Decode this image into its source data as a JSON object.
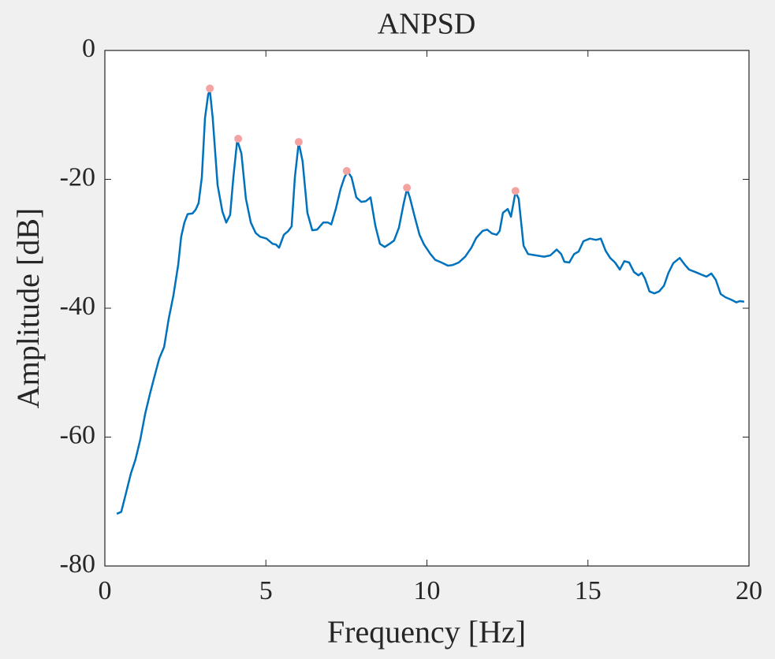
{
  "chart_data": {
    "type": "line",
    "title": "ANPSD",
    "xlabel": "Frequency [Hz]",
    "ylabel": "Amplitude [dB]",
    "xlim": [
      0,
      20
    ],
    "ylim": [
      -80,
      0
    ],
    "xticks": [
      0,
      5,
      10,
      15,
      20
    ],
    "yticks": [
      0,
      -20,
      -40,
      -60,
      -80
    ],
    "grid": false,
    "line": {
      "color": "#0072bd",
      "x": [
        0.37,
        0.51,
        0.66,
        0.81,
        0.95,
        1.1,
        1.25,
        1.4,
        1.54,
        1.69,
        1.84,
        1.98,
        2.13,
        2.28,
        2.37,
        2.47,
        2.57,
        2.72,
        2.82,
        2.91,
        3.01,
        3.11,
        3.21,
        3.26,
        3.35,
        3.5,
        3.65,
        3.77,
        3.89,
        3.99,
        4.11,
        4.24,
        4.38,
        4.53,
        4.68,
        4.82,
        5.02,
        5.21,
        5.31,
        5.41,
        5.56,
        5.7,
        5.8,
        5.9,
        6.02,
        6.14,
        6.29,
        6.44,
        6.59,
        6.78,
        6.93,
        7.03,
        7.17,
        7.32,
        7.44,
        7.54,
        7.66,
        7.81,
        7.96,
        8.1,
        8.25,
        8.4,
        8.54,
        8.69,
        8.84,
        8.98,
        9.13,
        9.28,
        9.38,
        9.47,
        9.62,
        9.77,
        9.91,
        10.11,
        10.26,
        10.45,
        10.65,
        10.8,
        10.99,
        11.19,
        11.38,
        11.53,
        11.73,
        11.87,
        12.02,
        12.17,
        12.26,
        12.36,
        12.51,
        12.61,
        12.75,
        12.85,
        13.0,
        13.14,
        13.39,
        13.64,
        13.83,
        14.03,
        14.17,
        14.27,
        14.42,
        14.57,
        14.71,
        14.86,
        15.06,
        15.25,
        15.4,
        15.55,
        15.69,
        15.84,
        15.99,
        16.13,
        16.28,
        16.43,
        16.57,
        16.67,
        16.77,
        16.91,
        17.06,
        17.21,
        17.36,
        17.5,
        17.65,
        17.85,
        18.0,
        18.14,
        18.34,
        18.53,
        18.68,
        18.83,
        18.97,
        19.12,
        19.27,
        19.46,
        19.61,
        19.71,
        19.85
      ],
      "y": [
        -71.9,
        -71.6,
        -68.6,
        -65.6,
        -63.5,
        -60.4,
        -56.4,
        -53.3,
        -50.6,
        -47.8,
        -46.0,
        -41.7,
        -38.0,
        -33.2,
        -28.9,
        -26.7,
        -25.4,
        -25.3,
        -24.7,
        -23.7,
        -19.7,
        -10.5,
        -6.8,
        -6.2,
        -10.5,
        -20.9,
        -25.0,
        -26.7,
        -25.5,
        -19.7,
        -13.9,
        -16.0,
        -23.0,
        -26.7,
        -28.3,
        -28.9,
        -29.2,
        -30.0,
        -30.1,
        -30.6,
        -28.6,
        -28.0,
        -27.3,
        -19.7,
        -14.3,
        -17.2,
        -25.2,
        -27.9,
        -27.8,
        -26.7,
        -26.7,
        -27.0,
        -24.6,
        -21.5,
        -19.7,
        -18.8,
        -19.7,
        -22.8,
        -23.5,
        -23.4,
        -22.8,
        -27.2,
        -30.0,
        -30.5,
        -30.0,
        -29.5,
        -27.5,
        -23.7,
        -21.5,
        -22.8,
        -25.8,
        -28.6,
        -30.1,
        -31.6,
        -32.5,
        -32.9,
        -33.4,
        -33.3,
        -32.9,
        -32.0,
        -30.6,
        -29.1,
        -28.0,
        -27.8,
        -28.4,
        -28.6,
        -28.0,
        -25.2,
        -24.6,
        -25.8,
        -22.0,
        -23.0,
        -30.3,
        -31.6,
        -31.8,
        -32.0,
        -31.8,
        -30.9,
        -31.6,
        -32.8,
        -32.9,
        -31.6,
        -31.2,
        -29.6,
        -29.2,
        -29.4,
        -29.2,
        -31.1,
        -32.2,
        -32.9,
        -34.0,
        -32.7,
        -32.9,
        -34.4,
        -34.9,
        -34.5,
        -35.4,
        -37.4,
        -37.7,
        -37.4,
        -36.5,
        -34.5,
        -33.0,
        -32.2,
        -33.2,
        -34.0,
        -34.4,
        -34.8,
        -35.1,
        -34.6,
        -35.6,
        -37.8,
        -38.3,
        -38.7,
        -39.1,
        -38.9,
        -39.0
      ]
    },
    "peaks": {
      "color": "#f4a3a3",
      "x": [
        3.26,
        4.14,
        6.02,
        7.51,
        9.38,
        12.75
      ],
      "y": [
        -5.9,
        -13.7,
        -14.2,
        -18.7,
        -21.3,
        -21.8
      ]
    }
  }
}
